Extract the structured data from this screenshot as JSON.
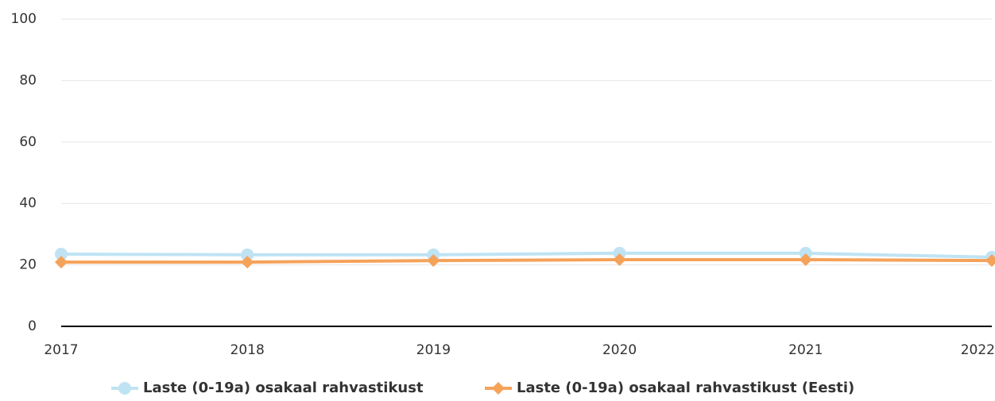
{
  "chart_data": {
    "type": "line",
    "categories": [
      "2017",
      "2018",
      "2019",
      "2020",
      "2021",
      "2022"
    ],
    "series": [
      {
        "name": "Laste (0-19a) osakaal rahvastikust",
        "color": "#bfe3f3",
        "marker": "circle",
        "values": [
          23.5,
          23.3,
          23.3,
          23.8,
          23.8,
          22.5
        ]
      },
      {
        "name": "Laste (0-19a) osakaal rahvastikust (Eesti)",
        "color": "#f5a25a",
        "marker": "diamond",
        "values": [
          20.9,
          20.9,
          21.4,
          21.7,
          21.7,
          21.4
        ]
      }
    ],
    "ylim": [
      0,
      100
    ],
    "yticks": [
      0,
      20,
      40,
      60,
      80,
      100
    ],
    "grid": true,
    "legend": "bottom"
  }
}
